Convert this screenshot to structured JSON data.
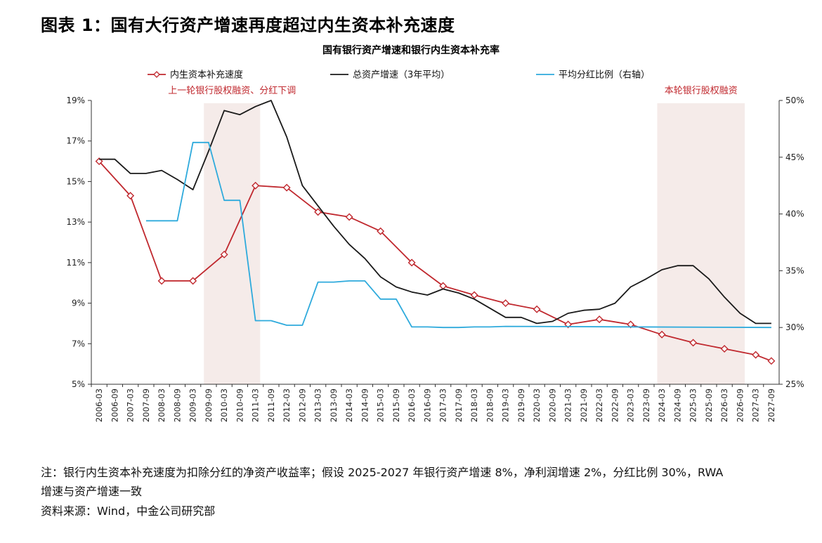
{
  "figure_title": "图表 1：国有大行资产增速再度超过内生资本补充速度",
  "notes": {
    "line1": "注：银行内生资本补充速度为扣除分红的净资产收益率；假设 2025-2027 年银行资产增速 8%，净利润增速 2%，分红比例 30%，RWA",
    "line2": "增速与资产增速一致",
    "source": "资料来源：Wind，中金公司研究部"
  },
  "chart_data": {
    "type": "line",
    "title": "国有银行资产增速和银行内生资本补充率",
    "x": [
      "2006-03",
      "2006-09",
      "2007-03",
      "2007-09",
      "2008-03",
      "2008-09",
      "2009-03",
      "2009-09",
      "2010-03",
      "2010-09",
      "2011-03",
      "2011-09",
      "2012-03",
      "2012-09",
      "2013-03",
      "2013-09",
      "2014-03",
      "2014-09",
      "2015-03",
      "2015-09",
      "2016-03",
      "2016-09",
      "2017-03",
      "2017-09",
      "2018-03",
      "2018-09",
      "2019-03",
      "2019-09",
      "2020-03",
      "2020-09",
      "2021-03",
      "2021-09",
      "2022-03",
      "2022-09",
      "2023-03",
      "2023-09",
      "2024-03",
      "2024-09",
      "2025-03",
      "2025-09",
      "2026-03",
      "2026-09",
      "2027-03",
      "2027-09"
    ],
    "y_left": {
      "min": 5,
      "max": 19,
      "ticks": [
        "5%",
        "7%",
        "9%",
        "11%",
        "13%",
        "15%",
        "17%",
        "19%"
      ]
    },
    "y_right": {
      "min": 25,
      "max": 50,
      "ticks": [
        "25%",
        "30%",
        "35%",
        "40%",
        "45%",
        "50%"
      ]
    },
    "series": [
      {
        "name": "内生资本补充速度",
        "axis": "left",
        "color": "#c0282e",
        "marker": "diamond",
        "points": [
          [
            "2006-03",
            16.0
          ],
          [
            "2007-03",
            14.3
          ],
          [
            "2008-03",
            10.1
          ],
          [
            "2009-03",
            10.1
          ],
          [
            "2010-03",
            11.4
          ],
          [
            "2011-03",
            14.8
          ],
          [
            "2012-03",
            14.7
          ],
          [
            "2013-03",
            13.5
          ],
          [
            "2014-03",
            13.25
          ],
          [
            "2015-03",
            12.55
          ],
          [
            "2016-03",
            11.0
          ],
          [
            "2017-03",
            9.85
          ],
          [
            "2018-03",
            9.4
          ],
          [
            "2019-03",
            9.0
          ],
          [
            "2020-03",
            8.7
          ],
          [
            "2021-03",
            7.95
          ],
          [
            "2022-03",
            8.2
          ],
          [
            "2023-03",
            7.95
          ],
          [
            "2024-03",
            7.45
          ],
          [
            "2025-03",
            7.05
          ],
          [
            "2026-03",
            6.75
          ],
          [
            "2027-03",
            6.45
          ],
          [
            "2027-09",
            6.15
          ]
        ]
      },
      {
        "name": "总资产增速（3年平均）",
        "axis": "left",
        "color": "#1a1a1a",
        "marker": "none",
        "points": [
          [
            "2006-03",
            16.1
          ],
          [
            "2006-09",
            16.1
          ],
          [
            "2007-03",
            15.4
          ],
          [
            "2007-09",
            15.4
          ],
          [
            "2008-03",
            15.55
          ],
          [
            "2008-09",
            15.1
          ],
          [
            "2009-03",
            14.6
          ],
          [
            "2009-09",
            16.5
          ],
          [
            "2010-03",
            18.5
          ],
          [
            "2010-09",
            18.3
          ],
          [
            "2011-03",
            18.7
          ],
          [
            "2011-09",
            19.0
          ],
          [
            "2012-03",
            17.2
          ],
          [
            "2012-09",
            14.8
          ],
          [
            "2013-03",
            13.8
          ],
          [
            "2013-09",
            12.8
          ],
          [
            "2014-03",
            11.9
          ],
          [
            "2014-09",
            11.2
          ],
          [
            "2015-03",
            10.3
          ],
          [
            "2015-09",
            9.8
          ],
          [
            "2016-03",
            9.55
          ],
          [
            "2016-09",
            9.4
          ],
          [
            "2017-03",
            9.7
          ],
          [
            "2017-09",
            9.5
          ],
          [
            "2018-03",
            9.2
          ],
          [
            "2018-09",
            8.75
          ],
          [
            "2019-03",
            8.3
          ],
          [
            "2019-09",
            8.3
          ],
          [
            "2020-03",
            8.0
          ],
          [
            "2020-09",
            8.1
          ],
          [
            "2021-03",
            8.5
          ],
          [
            "2021-09",
            8.65
          ],
          [
            "2022-03",
            8.7
          ],
          [
            "2022-09",
            9.0
          ],
          [
            "2023-03",
            9.8
          ],
          [
            "2023-09",
            10.2
          ],
          [
            "2024-03",
            10.65
          ],
          [
            "2024-09",
            10.85
          ],
          [
            "2025-03",
            10.85
          ],
          [
            "2025-09",
            10.2
          ],
          [
            "2026-03",
            9.3
          ],
          [
            "2026-09",
            8.5
          ],
          [
            "2027-03",
            8.0
          ],
          [
            "2027-09",
            8.0
          ]
        ]
      },
      {
        "name": "平均分红比例（右轴）",
        "axis": "right",
        "color": "#2eaadc",
        "marker": "none",
        "points": [
          [
            "2007-09",
            39.4
          ],
          [
            "2008-09",
            39.4
          ],
          [
            "2009-03",
            46.3
          ],
          [
            "2009-09",
            46.3
          ],
          [
            "2010-03",
            41.2
          ],
          [
            "2010-09",
            41.2
          ],
          [
            "2011-03",
            30.6
          ],
          [
            "2011-09",
            30.6
          ],
          [
            "2012-03",
            30.2
          ],
          [
            "2012-09",
            30.2
          ],
          [
            "2013-03",
            34.0
          ],
          [
            "2013-09",
            34.0
          ],
          [
            "2014-03",
            34.1
          ],
          [
            "2014-09",
            34.1
          ],
          [
            "2015-03",
            32.5
          ],
          [
            "2015-09",
            32.5
          ],
          [
            "2016-03",
            30.05
          ],
          [
            "2016-09",
            30.05
          ],
          [
            "2017-03",
            30.0
          ],
          [
            "2017-09",
            30.0
          ],
          [
            "2018-03",
            30.05
          ],
          [
            "2018-09",
            30.05
          ],
          [
            "2019-03",
            30.1
          ],
          [
            "2027-09",
            30.0
          ]
        ]
      }
    ],
    "shaded_regions": [
      {
        "from": "2009-09",
        "to": "2011-03",
        "label": "上一轮银行股权融资、分红下调",
        "label_color": "#c0282e"
      },
      {
        "from": "2024-03",
        "to": "2026-09",
        "label": "本轮银行股权融资",
        "label_color": "#c0282e"
      }
    ],
    "legend_position": "top",
    "grid": false,
    "shade_color": "#f5ebe9"
  }
}
